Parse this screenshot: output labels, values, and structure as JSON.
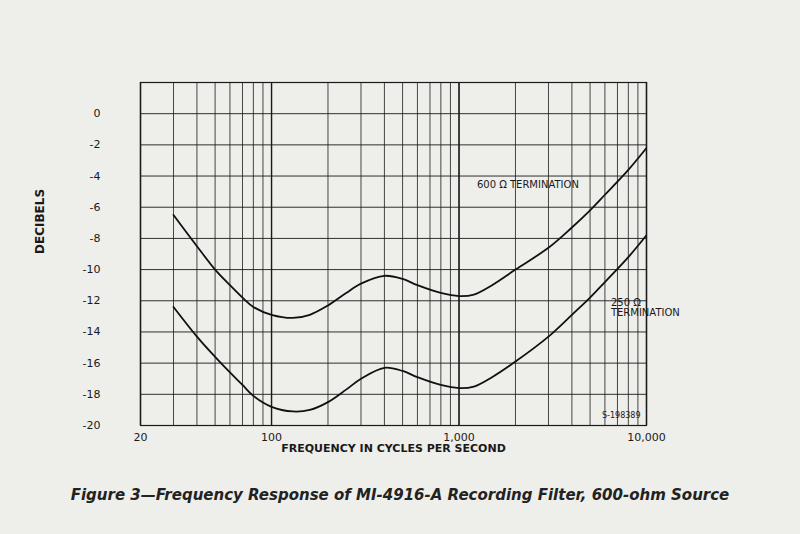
{
  "chart_data": {
    "type": "line",
    "title": "Figure 3—Frequency Response of MI-4916-A Recording Filter, 600-ohm Source",
    "x_label": "FREQUENCY IN CYCLES PER SECOND",
    "y_label": "DECIBELS",
    "x": [
      30,
      40,
      50,
      60,
      70,
      80,
      100,
      130,
      160,
      200,
      250,
      300,
      400,
      500,
      600,
      800,
      1000,
      1200,
      1500,
      2000,
      3000,
      4000,
      5000,
      6000,
      8000,
      10000
    ],
    "series": [
      {
        "name": "600 Ω TERMINATION",
        "color": "#111111",
        "values": [
          -6.5,
          -8.5,
          -10,
          -11,
          -11.8,
          -12.4,
          -12.9,
          -13.1,
          -12.9,
          -12.3,
          -11.5,
          -10.9,
          -10.4,
          -10.6,
          -11.0,
          -11.5,
          -11.7,
          -11.6,
          -11.0,
          -10.0,
          -8.6,
          -7.3,
          -6.2,
          -5.2,
          -3.6,
          -2.2
        ]
      },
      {
        "name": "250 Ω TERMINATION",
        "color": "#111111",
        "values": [
          -12.4,
          -14.3,
          -15.6,
          -16.6,
          -17.4,
          -18.1,
          -18.8,
          -19.1,
          -19.0,
          -18.5,
          -17.7,
          -17.0,
          -16.3,
          -16.5,
          -16.9,
          -17.4,
          -17.6,
          -17.5,
          -16.9,
          -15.9,
          -14.3,
          -12.9,
          -11.8,
          -10.8,
          -9.2,
          -7.8
        ]
      }
    ],
    "xlim": [
      20,
      10000
    ],
    "ylim": [
      -20,
      2
    ],
    "xticks": [
      20,
      100,
      {
        "value": 1000,
        "label": "1,000"
      },
      {
        "value": 10000,
        "label": "10,000"
      }
    ],
    "yticks": [
      -20,
      -18,
      -16,
      -14,
      -12,
      -10,
      -8,
      -6,
      -4,
      -2,
      0
    ],
    "log": "x",
    "grid": true,
    "annotations": [
      "S-198389"
    ]
  }
}
